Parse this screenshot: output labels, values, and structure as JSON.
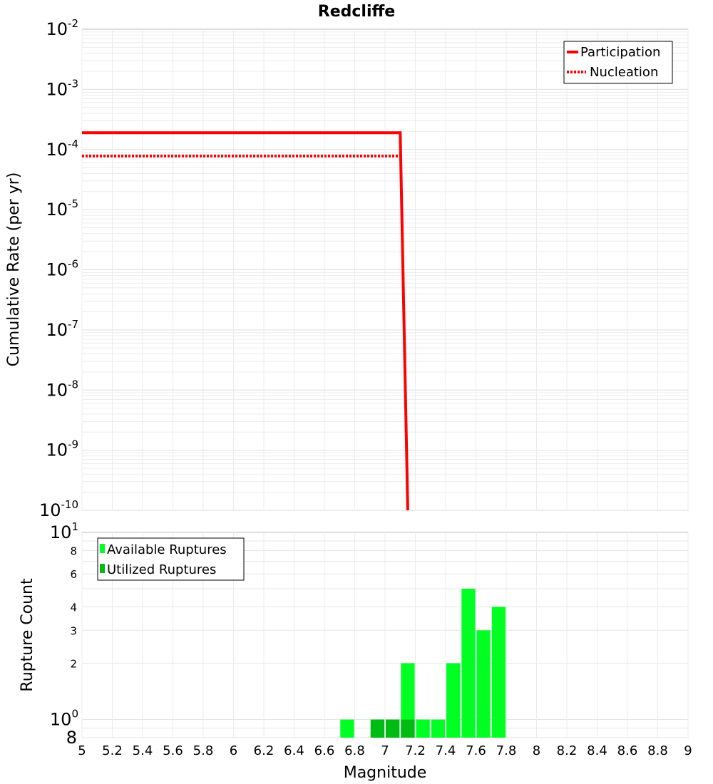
{
  "title": "Redcliffe",
  "chart_data": [
    {
      "type": "line",
      "name": "rate-chart",
      "ylabel": "Cumulative Rate (per yr)",
      "yscale": "log",
      "ylim": [
        1e-10,
        0.01
      ],
      "xlim": [
        5,
        9
      ],
      "y_ticks": [
        {
          "base": "10",
          "exp": "-2"
        },
        {
          "base": "10",
          "exp": "-3"
        },
        {
          "base": "10",
          "exp": "-4"
        },
        {
          "base": "10",
          "exp": "-5"
        },
        {
          "base": "10",
          "exp": "-6"
        },
        {
          "base": "10",
          "exp": "-7"
        },
        {
          "base": "10",
          "exp": "-8"
        },
        {
          "base": "10",
          "exp": "-9"
        },
        {
          "base": "10",
          "exp": "-10"
        }
      ],
      "legend_position": "top-right",
      "series": [
        {
          "name": "Participation",
          "color": "#ff0000",
          "style": "solid",
          "x": [
            5.0,
            7.1,
            7.15,
            7.15
          ],
          "y": [
            0.00019,
            0.00019,
            1e-10,
            1e-10
          ]
        },
        {
          "name": "Nucleation",
          "color": "#ff0000",
          "style": "dotted",
          "x": [
            5.0,
            7.1
          ],
          "y": [
            7.8e-05,
            7.8e-05
          ]
        }
      ]
    },
    {
      "type": "bar",
      "name": "rupture-count-chart",
      "xlabel": "Magnitude",
      "ylabel": "Rupture Count",
      "yscale": "log",
      "ylim": [
        0.8,
        10
      ],
      "xlim": [
        5,
        9
      ],
      "x_ticks": [
        "5",
        "5.2",
        "5.4",
        "5.6",
        "5.8",
        "6",
        "6.2",
        "6.4",
        "6.6",
        "6.8",
        "7",
        "7.2",
        "7.4",
        "7.6",
        "7.8",
        "8",
        "8.2",
        "8.4",
        "8.6",
        "8.8",
        "9"
      ],
      "y_major_ticks": [
        {
          "base": "10",
          "exp": "1",
          "value": 10
        },
        {
          "base": "10",
          "exp": "0",
          "value": 1
        }
      ],
      "y_minor_ticks": [
        "8",
        "6",
        "4",
        "3",
        "2"
      ],
      "y_min_label": "8",
      "legend_position": "top-left",
      "series": [
        {
          "name": "Available Ruptures",
          "color": "#00ff22",
          "x": [
            6.75,
            6.95,
            7.05,
            7.15,
            7.25,
            7.35,
            7.45,
            7.55,
            7.65,
            7.75
          ],
          "values": [
            1,
            1,
            1,
            2,
            1,
            1,
            2,
            5,
            3,
            4
          ]
        },
        {
          "name": "Utilized Ruptures",
          "color": "#00bb11",
          "x": [
            6.95,
            7.05,
            7.15
          ],
          "values": [
            1,
            1,
            1
          ]
        }
      ]
    }
  ]
}
